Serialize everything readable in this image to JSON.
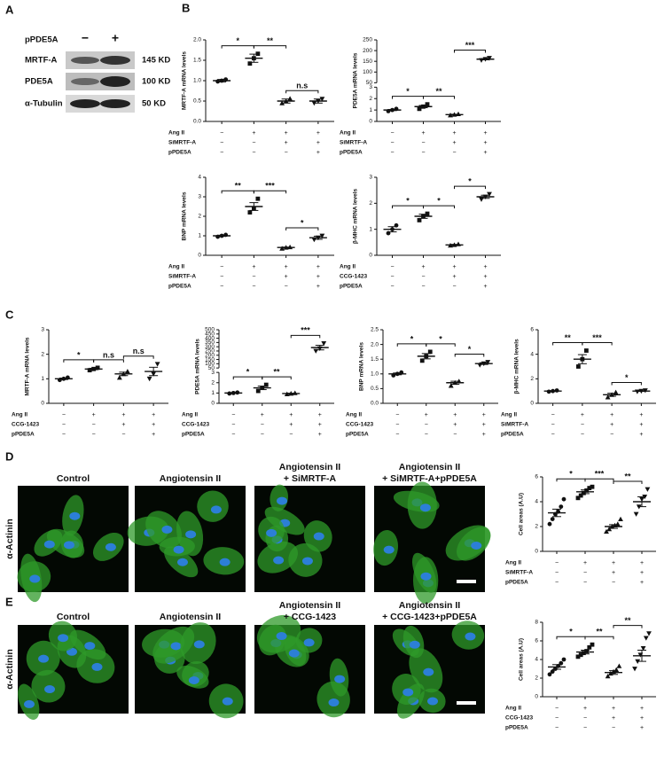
{
  "panel_labels": [
    "A",
    "B",
    "C",
    "D",
    "E"
  ],
  "blot": {
    "treatment": "pPDE5A",
    "signs": [
      "−",
      "+"
    ],
    "rows": [
      {
        "protein": "MRTF-A",
        "size": "145 KD"
      },
      {
        "protein": "PDE5A",
        "size": "100 KD"
      },
      {
        "protein": "α-Tubulin",
        "size": "50 KD"
      }
    ]
  },
  "micrographs": {
    "stain": "α-Actinin",
    "D": [
      [
        "Control"
      ],
      [
        "Angiotensin II"
      ],
      [
        "Angiotensin II",
        "+ SiMRTF-A"
      ],
      [
        "Angiotensin II",
        "+ SiMRTF-A+pPDE5A"
      ]
    ],
    "E": [
      [
        "Control"
      ],
      [
        "Angiotensin II"
      ],
      [
        "Angiotensin II",
        "+ CCG-1423"
      ],
      [
        "Angiotensin II",
        "+ CCG-1423+pPDE5A"
      ]
    ]
  },
  "chart_data": [
    {
      "type": "dot",
      "ylabel": "MRTF-A mRNA levels",
      "ylim": [
        0,
        2
      ],
      "yticks": [
        {
          "value": 0,
          "label": "0.0"
        },
        {
          "value": 0.5,
          "label": "0.5"
        },
        {
          "value": 1,
          "label": "1.0"
        },
        {
          "value": 1.5,
          "label": "1.5"
        },
        {
          "value": 2,
          "label": "2.0"
        }
      ],
      "values": [
        1.0,
        1.55,
        0.5,
        0.5
      ],
      "errors": [
        0.03,
        0.1,
        0.05,
        0.05
      ],
      "points": [
        [
          0.98,
          1.0,
          1.03
        ],
        [
          1.42,
          1.55,
          1.66
        ],
        [
          0.45,
          0.5,
          0.56
        ],
        [
          0.45,
          0.5,
          0.55
        ]
      ],
      "brackets": [
        "*",
        "**",
        "n.s"
      ],
      "conditions": [
        {
          "label": "Ang II",
          "signs": [
            "−",
            "+",
            "+",
            "+"
          ]
        },
        {
          "label": "SiMRTF-A",
          "signs": [
            "−",
            "−",
            "+",
            "+"
          ]
        },
        {
          "label": "pPDE5A",
          "signs": [
            "−",
            "−",
            "−",
            "+"
          ]
        }
      ]
    },
    {
      "type": "dot",
      "ylabel": "PDE5A mRNA levels",
      "segments": [
        {
          "ylim": [
            0,
            3
          ],
          "yticks": [
            0,
            1,
            2,
            3
          ]
        },
        {
          "ylim": [
            50,
            250
          ],
          "yticks": [
            50,
            100,
            150,
            200,
            250
          ]
        }
      ],
      "values": [
        1.0,
        1.3,
        0.6,
        160
      ],
      "errors": [
        0.05,
        0.1,
        0.03,
        3
      ],
      "points": [
        [
          0.9,
          1.0,
          1.1
        ],
        [
          1.1,
          1.3,
          1.5
        ],
        [
          0.55,
          0.6,
          0.65
        ],
        [
          155,
          160,
          165
        ]
      ],
      "brackets": [
        "*",
        "**",
        "***"
      ],
      "conditions": [
        {
          "label": "Ang II",
          "signs": [
            "−",
            "+",
            "+",
            "+"
          ]
        },
        {
          "label": "SiMRTF-A",
          "signs": [
            "−",
            "−",
            "+",
            "+"
          ]
        },
        {
          "label": "pPDE5A",
          "signs": [
            "−",
            "−",
            "−",
            "+"
          ]
        }
      ]
    },
    {
      "type": "dot",
      "ylabel": "BNP mRNA levels",
      "ylim": [
        0,
        4
      ],
      "yticks": [
        0,
        1,
        2,
        3,
        4
      ],
      "values": [
        1.0,
        2.5,
        0.4,
        0.9
      ],
      "errors": [
        0.03,
        0.2,
        0.02,
        0.08
      ],
      "points": [
        [
          0.95,
          1.0,
          1.05
        ],
        [
          2.2,
          2.4,
          2.9
        ],
        [
          0.35,
          0.4,
          0.42
        ],
        [
          0.8,
          0.9,
          1.0
        ]
      ],
      "brackets": [
        "**",
        "***",
        "*"
      ],
      "conditions": [
        {
          "label": "Ang II",
          "signs": [
            "−",
            "+",
            "+",
            "+"
          ]
        },
        {
          "label": "SiMRTF-A",
          "signs": [
            "−",
            "−",
            "+",
            "+"
          ]
        },
        {
          "label": "pPDE5A",
          "signs": [
            "−",
            "−",
            "−",
            "+"
          ]
        }
      ]
    },
    {
      "type": "dot",
      "ylabel": "β-MHC mRNA levels",
      "ylim": [
        0,
        3
      ],
      "yticks": [
        0,
        1,
        2,
        3
      ],
      "values": [
        1.0,
        1.5,
        0.4,
        2.25
      ],
      "errors": [
        0.1,
        0.08,
        0.02,
        0.06
      ],
      "points": [
        [
          0.85,
          1.0,
          1.15
        ],
        [
          1.35,
          1.5,
          1.6
        ],
        [
          0.38,
          0.4,
          0.43
        ],
        [
          2.15,
          2.25,
          2.35
        ]
      ],
      "brackets": [
        "*",
        "*",
        "*"
      ],
      "conditions": [
        {
          "label": "Ang II",
          "signs": [
            "−",
            "+",
            "+",
            "+"
          ]
        },
        {
          "label": "CCG-1423",
          "signs": [
            "−",
            "−",
            "+",
            "+"
          ]
        },
        {
          "label": "pPDE5A",
          "signs": [
            "−",
            "−",
            "−",
            "+"
          ]
        }
      ]
    },
    {
      "type": "dot",
      "ylabel": "MRTF-A mRNA levels",
      "ylim": [
        0,
        3
      ],
      "yticks": [
        0,
        1,
        2,
        3
      ],
      "values": [
        1.0,
        1.4,
        1.2,
        1.3
      ],
      "errors": [
        0.03,
        0.03,
        0.07,
        0.17
      ],
      "points": [
        [
          0.95,
          1.0,
          1.05
        ],
        [
          1.35,
          1.4,
          1.45
        ],
        [
          1.05,
          1.2,
          1.3
        ],
        [
          1.0,
          1.2,
          1.6
        ]
      ],
      "brackets": [
        "*",
        "n.s",
        "n.s"
      ],
      "conditions": [
        {
          "label": "Ang II",
          "signs": [
            "−",
            "+",
            "+",
            "+"
          ]
        },
        {
          "label": "CCG-1423",
          "signs": [
            "−",
            "−",
            "+",
            "+"
          ]
        },
        {
          "label": "pPDE5A",
          "signs": [
            "−",
            "−",
            "−",
            "+"
          ]
        }
      ]
    },
    {
      "type": "dot",
      "ylabel": "PDE5A mRNA levels",
      "segments": [
        {
          "ylim": [
            0,
            3
          ],
          "yticks": [
            0,
            1,
            2,
            3
          ]
        },
        {
          "ylim": [
            50,
            500
          ],
          "yticks": [
            50,
            100,
            150,
            200,
            250,
            300,
            350,
            400,
            450,
            500
          ]
        }
      ],
      "values": [
        1.0,
        1.5,
        0.95,
        290
      ],
      "errors": [
        0.03,
        0.17,
        0.03,
        27
      ],
      "points": [
        [
          0.95,
          1.0,
          1.05
        ],
        [
          1.2,
          1.5,
          1.8
        ],
        [
          0.9,
          0.95,
          1.0
        ],
        [
          250,
          280,
          340
        ]
      ],
      "brackets": [
        "*",
        "**",
        "***"
      ],
      "conditions": [
        {
          "label": "Ang II",
          "signs": [
            "−",
            "+",
            "+",
            "+"
          ]
        },
        {
          "label": "CCG-1423",
          "signs": [
            "−",
            "−",
            "+",
            "+"
          ]
        },
        {
          "label": "pPDE5A",
          "signs": [
            "−",
            "−",
            "−",
            "+"
          ]
        }
      ]
    },
    {
      "type": "dot",
      "ylabel": "BNP mRNA levels",
      "ylim": [
        0,
        2.5
      ],
      "yticks": [
        {
          "value": 0,
          "label": "0.0"
        },
        {
          "value": 0.5,
          "label": "0.5"
        },
        {
          "value": 1,
          "label": "1.0"
        },
        {
          "value": 1.5,
          "label": "1.5"
        },
        {
          "value": 2,
          "label": "2.0"
        },
        {
          "value": 2.5,
          "label": "2.5"
        }
      ],
      "values": [
        1.0,
        1.6,
        0.7,
        1.35
      ],
      "errors": [
        0.03,
        0.09,
        0.05,
        0.03
      ],
      "points": [
        [
          0.95,
          1.0,
          1.05
        ],
        [
          1.45,
          1.6,
          1.75
        ],
        [
          0.6,
          0.7,
          0.75
        ],
        [
          1.3,
          1.35,
          1.4
        ]
      ],
      "brackets": [
        "*",
        "*",
        "*"
      ],
      "conditions": [
        {
          "label": "Ang II",
          "signs": [
            "−",
            "+",
            "+",
            "+"
          ]
        },
        {
          "label": "CCG-1423",
          "signs": [
            "−",
            "−",
            "+",
            "+"
          ]
        },
        {
          "label": "pPDE5A",
          "signs": [
            "−",
            "−",
            "−",
            "+"
          ]
        }
      ]
    },
    {
      "type": "dot",
      "ylabel": "β-MHC mRNA levels",
      "ylim": [
        0,
        6
      ],
      "yticks": [
        0,
        2,
        4,
        6
      ],
      "values": [
        1.0,
        3.6,
        0.7,
        1.0
      ],
      "errors": [
        0.03,
        0.37,
        0.12,
        0.03
      ],
      "points": [
        [
          0.95,
          1.0,
          1.05
        ],
        [
          3.0,
          3.6,
          4.3
        ],
        [
          0.5,
          0.7,
          0.9
        ],
        [
          0.95,
          1.0,
          1.05
        ]
      ],
      "brackets": [
        "**",
        "***",
        "*"
      ],
      "conditions": [
        {
          "label": "Ang II",
          "signs": [
            "−",
            "+",
            "+",
            "+"
          ]
        },
        {
          "label": "SiMRTF-A",
          "signs": [
            "−",
            "−",
            "+",
            "+"
          ]
        },
        {
          "label": "pPDE5A",
          "signs": [
            "−",
            "−",
            "−",
            "+"
          ]
        }
      ]
    },
    {
      "type": "dot",
      "ylabel": "Cell areas (A.U)",
      "ylim": [
        0,
        6
      ],
      "yticks": [
        0,
        2,
        4,
        6
      ],
      "values": [
        3.1,
        4.8,
        2.0,
        4.0
      ],
      "errors": [
        0.3,
        0.15,
        0.15,
        0.4
      ],
      "points": [
        [
          2.2,
          2.6,
          3.0,
          3.2,
          3.6,
          4.2
        ],
        [
          4.3,
          4.5,
          4.7,
          4.9,
          5.1,
          5.2
        ],
        [
          1.6,
          1.8,
          2.0,
          2.1,
          2.2,
          2.6
        ],
        [
          3.0,
          3.6,
          4.2,
          4.4,
          5.0
        ]
      ],
      "brackets": [
        "*",
        "***",
        "**"
      ],
      "conditions": [
        {
          "label": "Ang II",
          "signs": [
            "−",
            "+",
            "+",
            "+"
          ]
        },
        {
          "label": "SiMRTF-A",
          "signs": [
            "−",
            "−",
            "+",
            "+"
          ]
        },
        {
          "label": "pPDE5A",
          "signs": [
            "−",
            "−",
            "−",
            "+"
          ]
        }
      ]
    },
    {
      "type": "dot",
      "ylabel": "Cell areas (A.U)",
      "ylim": [
        0,
        8
      ],
      "yticks": [
        0,
        2,
        4,
        6,
        8
      ],
      "values": [
        3.2,
        4.8,
        2.6,
        4.4
      ],
      "errors": [
        0.25,
        0.2,
        0.2,
        0.6
      ],
      "points": [
        [
          2.4,
          2.7,
          3.0,
          3.3,
          3.6,
          4.0
        ],
        [
          4.3,
          4.5,
          4.7,
          4.9,
          5.3,
          5.6
        ],
        [
          2.2,
          2.5,
          2.7,
          2.9,
          3.3
        ],
        [
          3.0,
          3.8,
          4.5,
          5.2,
          6.3,
          6.8
        ]
      ],
      "brackets": [
        "*",
        "**",
        "**"
      ],
      "conditions": [
        {
          "label": "Ang II",
          "signs": [
            "−",
            "+",
            "+",
            "+"
          ]
        },
        {
          "label": "CCG-1423",
          "signs": [
            "−",
            "−",
            "+",
            "+"
          ]
        },
        {
          "label": "pPDE5A",
          "signs": [
            "−",
            "−",
            "−",
            "+"
          ]
        }
      ]
    }
  ]
}
